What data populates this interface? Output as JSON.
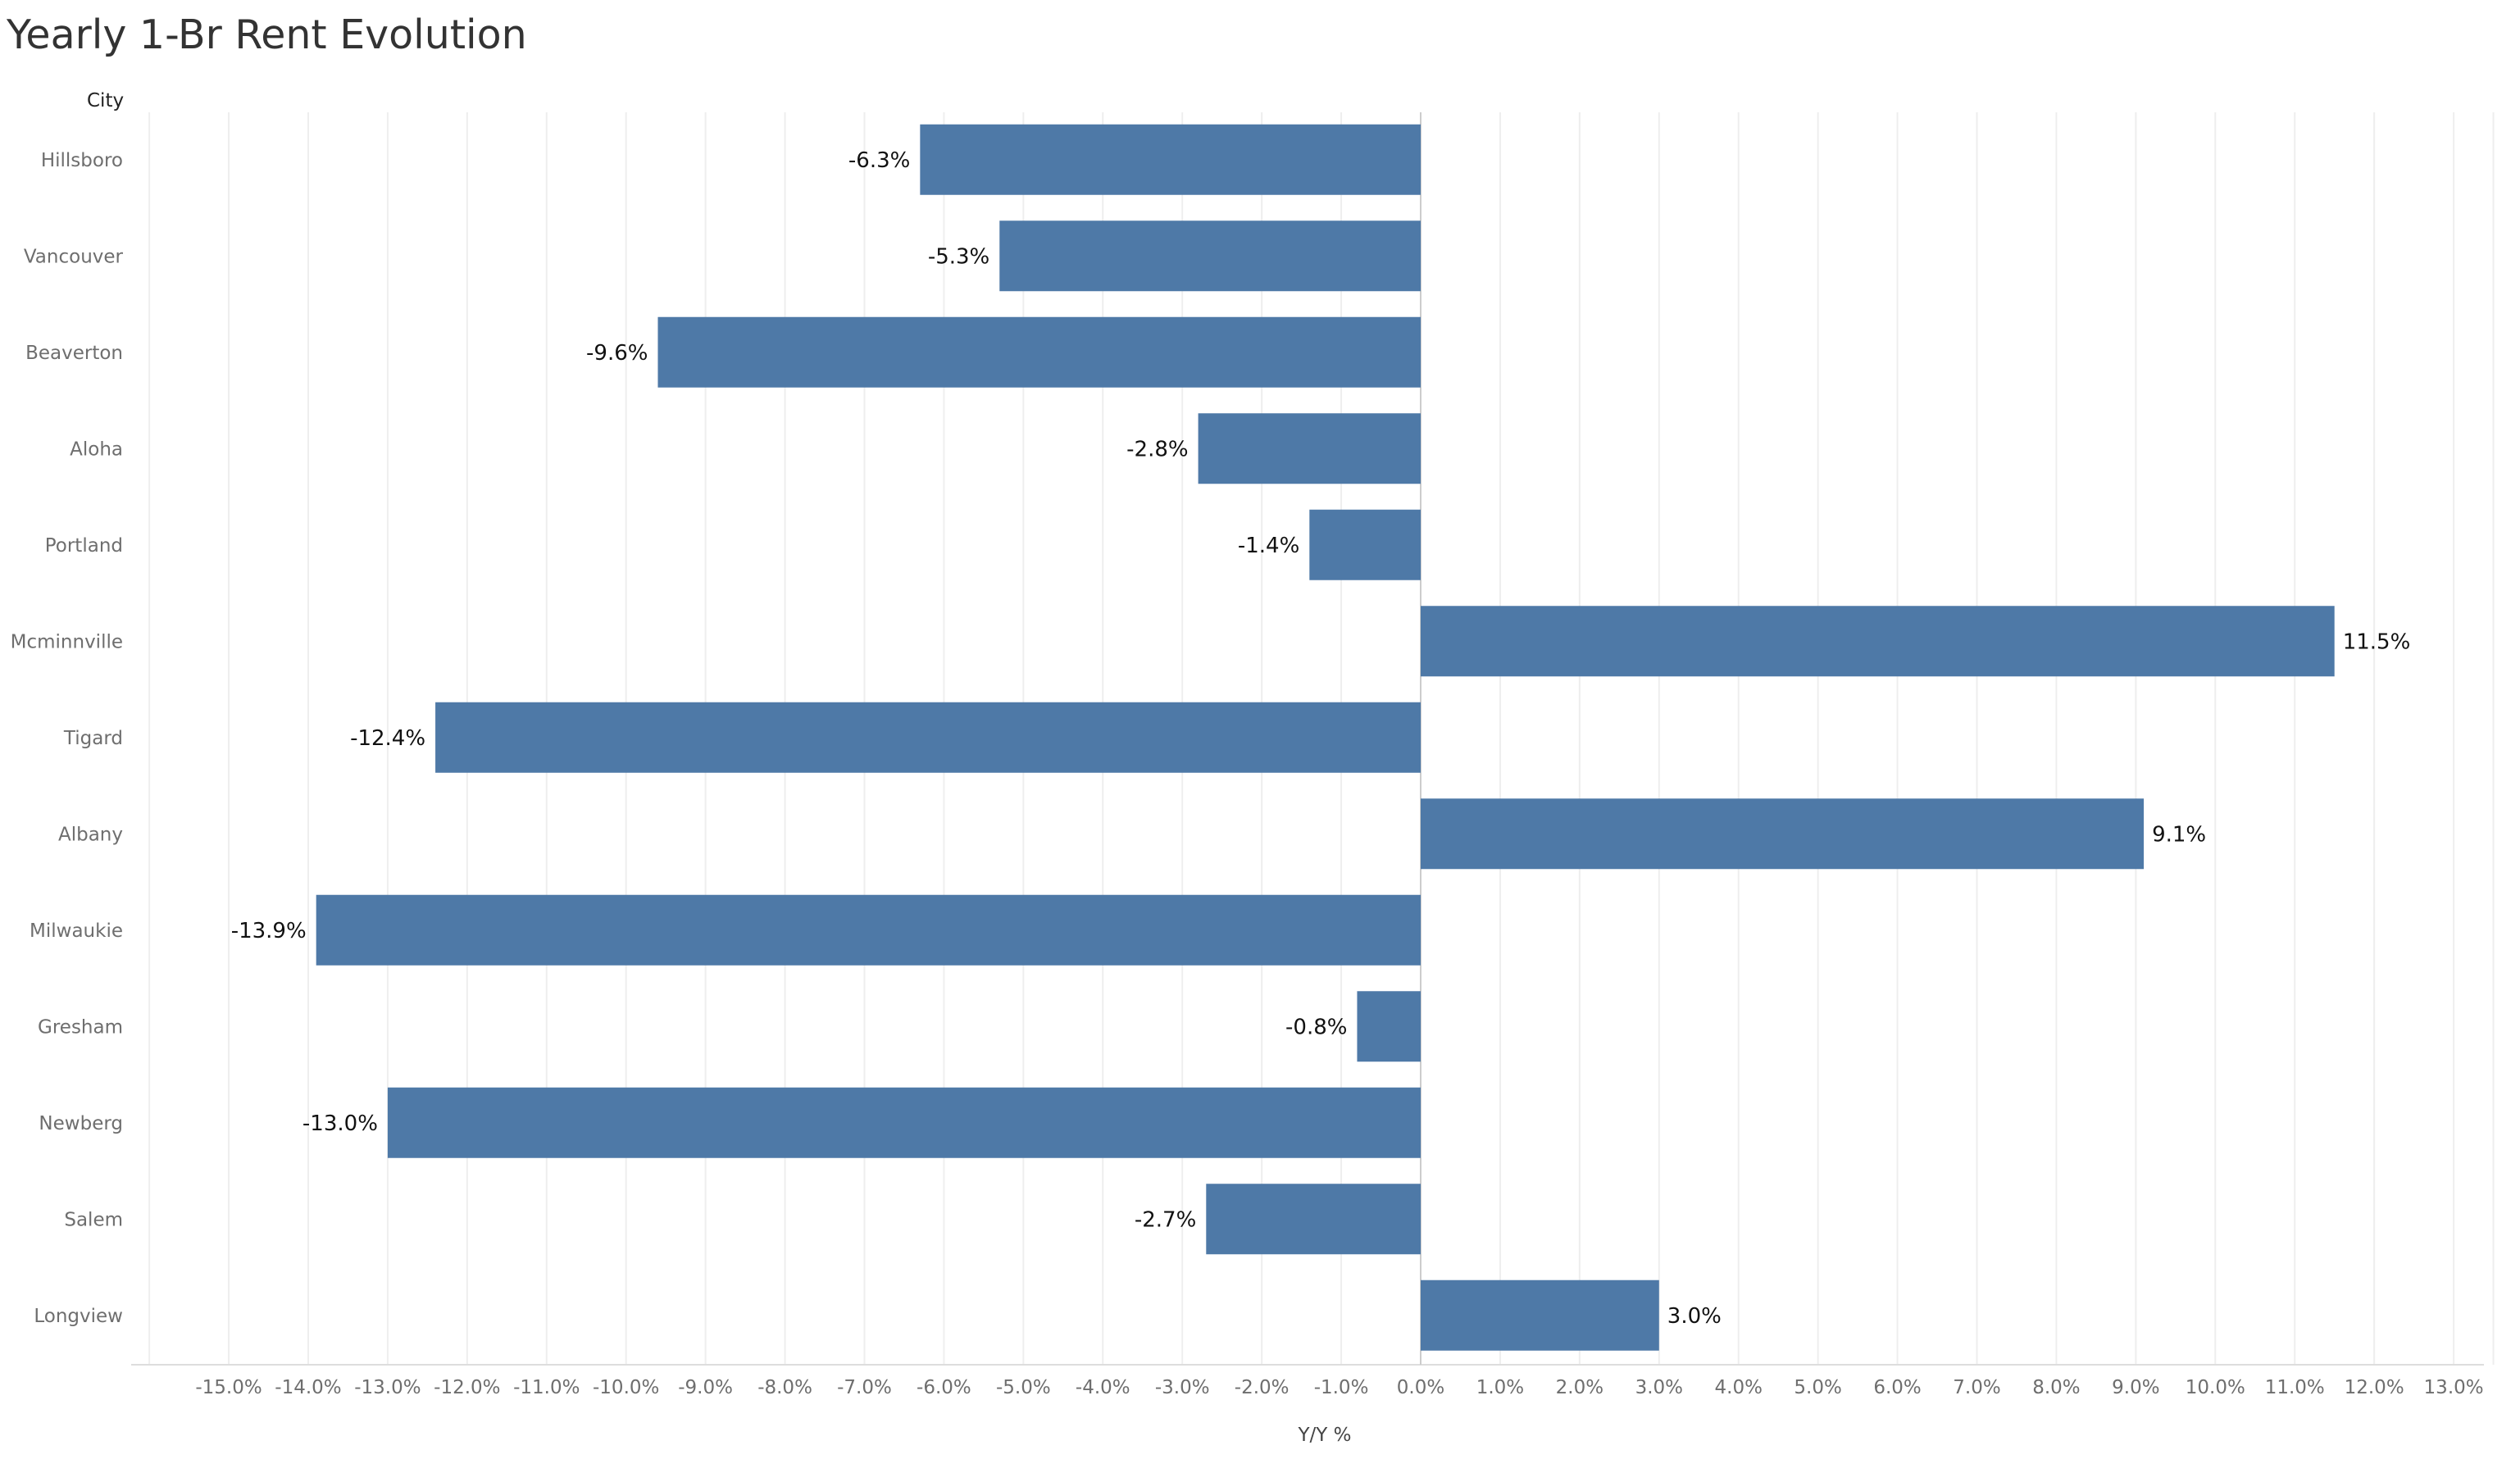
{
  "chart_data": {
    "type": "bar",
    "orientation": "horizontal",
    "title": "Yearly 1-Br Rent Evolution",
    "row_header": "City",
    "xlabel": "Y/Y %",
    "categories": [
      "Hillsboro",
      "Vancouver",
      "Beaverton",
      "Aloha",
      "Portland",
      "Mcminnville",
      "Tigard",
      "Albany",
      "Milwaukie",
      "Gresham",
      "Newberg",
      "Salem",
      "Longview"
    ],
    "values": [
      -6.3,
      -5.3,
      -9.6,
      -2.8,
      -1.4,
      11.5,
      -12.4,
      9.1,
      -13.9,
      -0.8,
      -13.0,
      -2.7,
      3.0
    ],
    "value_labels": [
      "-6.3%",
      "-5.3%",
      "-9.6%",
      "-2.8%",
      "-1.4%",
      "11.5%",
      "-12.4%",
      "9.1%",
      "-13.9%",
      "-0.8%",
      "-13.0%",
      "-2.7%",
      "3.0%"
    ],
    "x_ticks": [
      -15,
      -14,
      -13,
      -12,
      -11,
      -10,
      -9,
      -8,
      -7,
      -6,
      -5,
      -4,
      -3,
      -2,
      -1,
      0,
      1,
      2,
      3,
      4,
      5,
      6,
      7,
      8,
      9,
      10,
      11,
      12,
      13
    ],
    "x_tick_labels": [
      "-15.0%",
      "-14.0%",
      "-13.0%",
      "-12.0%",
      "-11.0%",
      "-10.0%",
      "-9.0%",
      "-8.0%",
      "-7.0%",
      "-6.0%",
      "-5.0%",
      "-4.0%",
      "-3.0%",
      "-2.0%",
      "-1.0%",
      "0.0%",
      "1.0%",
      "2.0%",
      "3.0%",
      "4.0%",
      "5.0%",
      "6.0%",
      "7.0%",
      "8.0%",
      "9.0%",
      "10.0%",
      "11.0%",
      "12.0%",
      "13.0%"
    ],
    "xlim": [
      -16,
      13.5
    ],
    "grid": "vertical",
    "legend": "none",
    "bar_color": "#4e79a7"
  }
}
